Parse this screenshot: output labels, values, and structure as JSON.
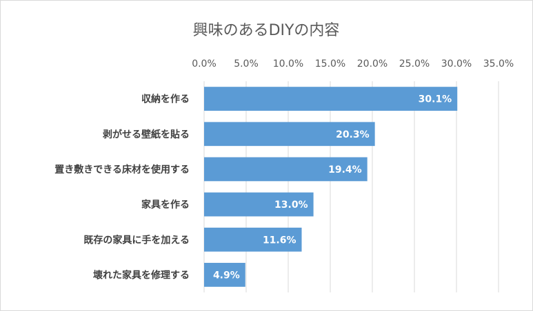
{
  "chart_data": {
    "type": "bar",
    "orientation": "horizontal",
    "title": "興味のあるDIYの内容",
    "categories": [
      "収納を作る",
      "剥がせる壁紙を貼る",
      "置き敷きできる床材を使用する",
      "家具を作る",
      "既存の家具に手を加える",
      "壊れた家具を修理する"
    ],
    "values": [
      30.1,
      20.3,
      19.4,
      13.0,
      11.6,
      4.9
    ],
    "value_labels": [
      "30.1%",
      "20.3%",
      "19.4%",
      "13.0%",
      "11.6%",
      "4.9%"
    ],
    "xticks": [
      0,
      5,
      10,
      15,
      20,
      25,
      30,
      35
    ],
    "xtick_labels": [
      "0.0%",
      "5.0%",
      "10.0%",
      "15.0%",
      "20.0%",
      "25.0%",
      "30.0%",
      "35.0%"
    ],
    "xlim": [
      0,
      35
    ],
    "xaxis_position": "top",
    "grid": true,
    "legend": "none",
    "bar_color": "#5b9bd5",
    "grid_color": "#d9d9d9"
  }
}
